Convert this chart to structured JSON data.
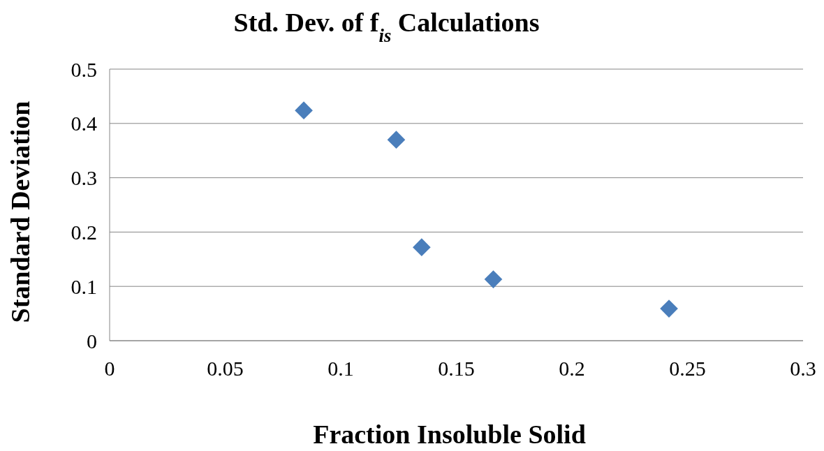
{
  "chart_data": {
    "type": "scatter",
    "title": "Std. Dev. of f$_{is}$ Calculations",
    "xlabel": "Fraction Insoluble Solid",
    "ylabel": "Standard Deviation",
    "x": [
      0.084,
      0.124,
      0.135,
      0.166,
      0.242
    ],
    "series": [
      {
        "color": "#4a7ebb",
        "values": [
          0.424,
          0.37,
          0.172,
          0.113,
          0.059
        ]
      }
    ],
    "xlim": [
      0,
      0.3
    ],
    "xticks": [
      0,
      0.05,
      0.1,
      0.15,
      0.2,
      0.25,
      0.3
    ],
    "ylim": [
      0,
      0.5
    ],
    "yticks": [
      0,
      0.1,
      0.2,
      0.3,
      0.4,
      0.5
    ],
    "grid": "y",
    "marker": "diamond"
  }
}
